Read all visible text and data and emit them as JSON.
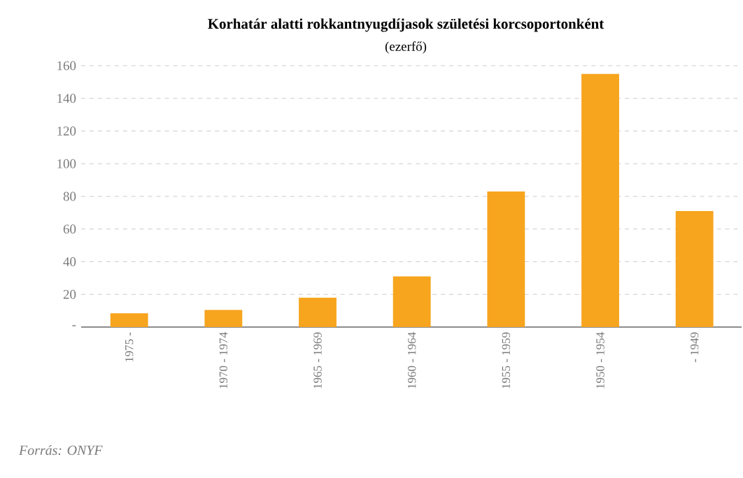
{
  "chart_data": {
    "type": "bar",
    "title": "Korhatár alatti rokkantnyugdíjasok születési korcsoportonként",
    "subtitle": "(ezerfő)",
    "categories": [
      "1975 -",
      "1970 - 1974",
      "1965 - 1969",
      "1960 - 1964",
      "1955 - 1959",
      "1950 - 1954",
      "- 1949"
    ],
    "values": [
      8.5,
      10.5,
      18,
      31,
      83,
      155,
      71
    ],
    "color": "#f7a51f",
    "ylim": [
      0,
      160
    ],
    "yticks": [
      {
        "value": 0,
        "label": "-"
      },
      20,
      40,
      60,
      80,
      100,
      120,
      140,
      160
    ],
    "grid": "y",
    "annotations": [
      "Forrás: ONYF"
    ]
  }
}
